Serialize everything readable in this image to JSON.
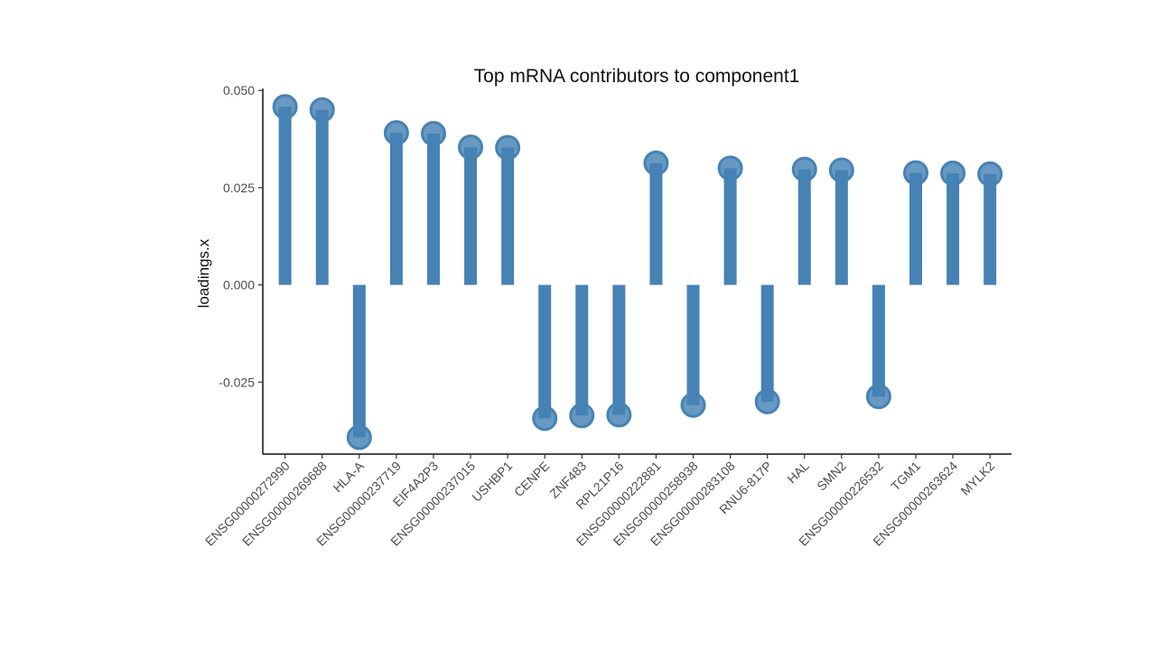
{
  "chart_data": {
    "type": "lollipop",
    "title": "Top mRNA contributors to component1",
    "xlabel": "",
    "ylabel": "loadings.x",
    "ylim": [
      -0.0435,
      0.0505
    ],
    "yticks": [
      0.05,
      0.025,
      0.0,
      -0.025,
      -0.05
    ],
    "ytick_labels": [
      "0.050",
      "0.025",
      "0.000",
      "-0.025"
    ],
    "categories": [
      "ENSG00000272990",
      "ENSG00000269688",
      "HLA-A",
      "ENSG00000237719",
      "EIF4A2P3",
      "ENSG00000237015",
      "USHBP1",
      "CENPE",
      "ZNF483",
      "RPL21P16",
      "ENSG00000222881",
      "ENSG00000258938",
      "ENSG00000283108",
      "RNU6-817P",
      "HAL",
      "SMN2",
      "ENSG00000226532",
      "TGM1",
      "ENSG00000263624",
      "MYLK2"
    ],
    "values": [
      0.0458,
      0.045,
      -0.0392,
      0.0391,
      0.0389,
      0.0354,
      0.0353,
      -0.0343,
      -0.0336,
      -0.0334,
      0.0313,
      -0.0309,
      0.03,
      -0.03,
      0.0297,
      0.0295,
      -0.0287,
      0.0288,
      0.0287,
      0.0285
    ],
    "color": "#4682B4",
    "grid": false,
    "legend": "none"
  }
}
